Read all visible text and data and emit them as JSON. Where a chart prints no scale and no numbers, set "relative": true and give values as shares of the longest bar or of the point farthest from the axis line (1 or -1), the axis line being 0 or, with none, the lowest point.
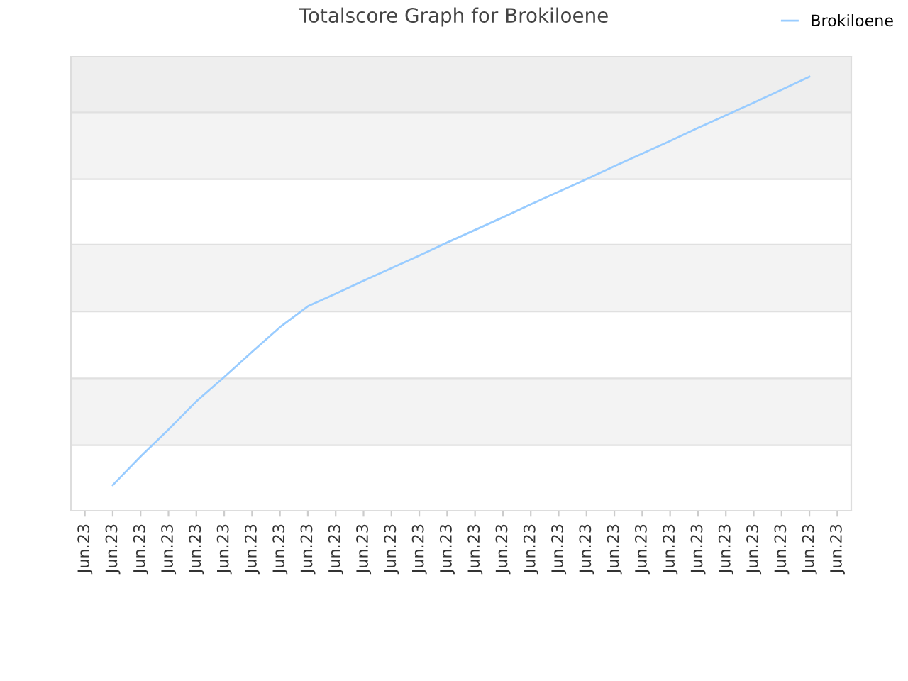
{
  "chart_data": {
    "type": "line",
    "title": "Totalscore Graph for Brokiloene",
    "relative": true,
    "categories": [
      "Jun.23",
      "Jun.23",
      "Jun.23",
      "Jun.23",
      "Jun.23",
      "Jun.23",
      "Jun.23",
      "Jun.23",
      "Jun.23",
      "Jun.23",
      "Jun.23",
      "Jun.23",
      "Jun.23",
      "Jun.23",
      "Jun.23",
      "Jun.23",
      "Jun.23",
      "Jun.23",
      "Jun.23",
      "Jun.23",
      "Jun.23",
      "Jun.23",
      "Jun.23",
      "Jun.23",
      "Jun.23",
      "Jun.23",
      "Jun.23",
      "Jun.23"
    ],
    "series": [
      {
        "name": "Brokiloene",
        "color": "#99ccff",
        "values": [
          null,
          0.059,
          0.125,
          0.187,
          0.252,
          0.308,
          0.366,
          0.423,
          0.471,
          0.5,
          0.53,
          0.559,
          0.588,
          0.618,
          0.647,
          0.676,
          0.706,
          0.735,
          0.764,
          0.794,
          0.823,
          0.852,
          0.882,
          0.911,
          0.94,
          0.97,
          1,
          null
        ]
      }
    ],
    "bands": [
      {
        "axis": "y",
        "from": 0.918,
        "to": 1.046,
        "color": "#eeeeee"
      },
      {
        "axis": "y",
        "from": 0.764,
        "to": 0.918,
        "color": "#f3f3f3"
      },
      {
        "axis": "y",
        "from": 0.459,
        "to": 0.613,
        "color": "#f3f3f3"
      },
      {
        "axis": "y",
        "from": 0.151,
        "to": 0.305,
        "color": "#f3f3f3"
      }
    ],
    "grid": "y",
    "legend": "top right",
    "marker": "none",
    "line_style": "solid"
  }
}
